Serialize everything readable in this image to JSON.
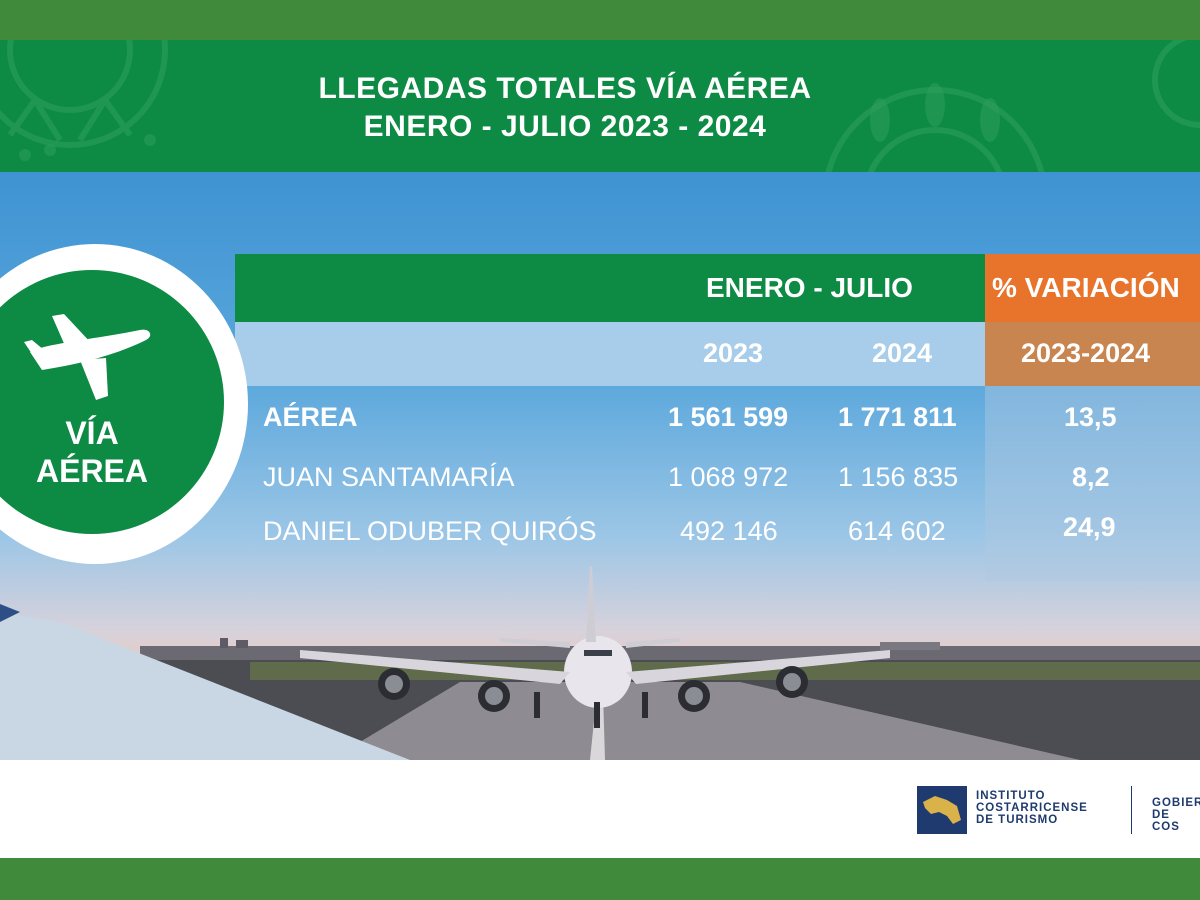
{
  "header": {
    "title_line1": "LLEGADAS TOTALES VÍA AÉREA",
    "title_line2": "ENERO - JULIO 2023 - 2024"
  },
  "badge": {
    "icon": "airplane-icon",
    "line1": "VÍA",
    "line2": "AÉREA"
  },
  "table": {
    "period_header": "ENERO - JULIO",
    "variation_header": "% VARIACIÓN",
    "year_a": "2023",
    "year_b": "2024",
    "variation_years": "2023-2024",
    "rows": [
      {
        "label": "AÉREA",
        "y2023": "1 561 599",
        "y2024": "1 771 811",
        "variation": "13,5"
      },
      {
        "label": "JUAN SANTAMARÍA",
        "y2023": "1 068 972",
        "y2024": "1 156 835",
        "variation": "8,2"
      },
      {
        "label": "DANIEL ODUBER QUIRÓS",
        "y2023": "492 146",
        "y2024": "614 602",
        "variation": "24,9"
      }
    ]
  },
  "footer": {
    "ict_line1": "INSTITUTO",
    "ict_line2": "COSTARRICENSE",
    "ict_line3": "DE TURISMO",
    "gov_line1": "GOBIER",
    "gov_line2": "DE COS"
  },
  "colors": {
    "brand_green": "#0d8a44",
    "frame_green": "#3f8a3b",
    "orange": "#e8732a",
    "ict_blue": "#1f3a6e"
  }
}
